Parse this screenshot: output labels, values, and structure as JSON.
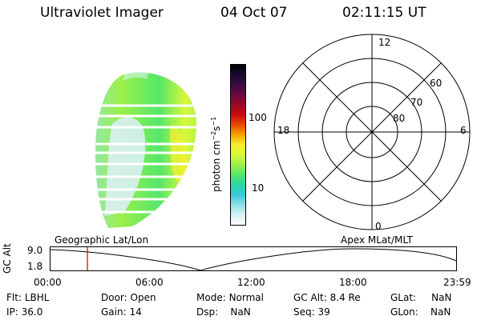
{
  "header": {
    "title": "Ultraviolet Imager",
    "date": "04 Oct 07",
    "time": "02:11:15 UT"
  },
  "colorbar": {
    "unit_label": "photon cm",
    "unit_exp1": "−2",
    "unit_mid": "s",
    "unit_exp2": "−1",
    "tick_100": "100",
    "tick_10": "10",
    "colors": [
      "#000000",
      "#1a0a30",
      "#3c0a45",
      "#6a0a3f",
      "#9a0a26",
      "#c90a12",
      "#e84a00",
      "#f7a400",
      "#f6ef2e",
      "#d8f83a",
      "#9cf04a",
      "#54e66a",
      "#28d8a8",
      "#38c8d8",
      "#8ee0e8",
      "#d8f0f4",
      "#ffffff"
    ]
  },
  "polar": {
    "label_12": "12",
    "label_18": "18",
    "label_6": "6",
    "label_0": "0",
    "label_60": "60",
    "label_70": "70",
    "label_80": "80"
  },
  "timeline": {
    "ylabel": "GC Alt",
    "ytick_top": "9.0",
    "ytick_bottom": "1.8",
    "left_label": "Geographic Lat/Lon",
    "right_label": "Apex MLat/MLT",
    "xticks": [
      "00:00",
      "06:00",
      "12:00",
      "18:00",
      "23:59"
    ],
    "marker_time": "02:11",
    "marker_color": "#d00000"
  },
  "info": {
    "flt_label": "Flt:",
    "flt_value": "LBHL",
    "ip_label": "IP:",
    "ip_value": "36.0",
    "door_label": "Door:",
    "door_value": "Open",
    "gain_label": "Gain:",
    "gain_value": "14",
    "mode_label": "Mode:",
    "mode_value": "Normal",
    "dsp_label": "Dsp:",
    "dsp_value": "NaN",
    "gcalt_label": "GC Alt:",
    "gcalt_value": "8.4 Re",
    "seq_label": "Seq:",
    "seq_value": "39",
    "glat_label": "GLat:",
    "glat_value": "NaN",
    "glon_label": "GLon:",
    "glon_value": "NaN"
  }
}
